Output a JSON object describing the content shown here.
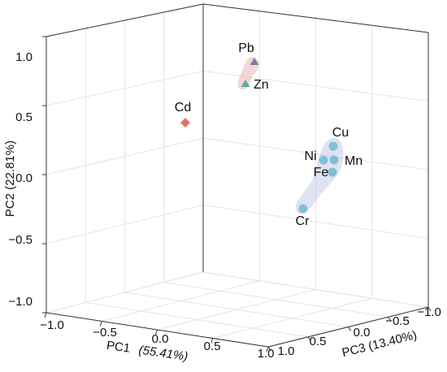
{
  "chart_data": {
    "type": "scatter",
    "title": "",
    "axes": {
      "x": {
        "label": "PC1",
        "pct": "(55.41%)",
        "ticks": [
          "−1.0",
          "−0.5",
          "0.0",
          "0.5",
          "1.0"
        ]
      },
      "y": {
        "label": "PC2 (22.81%)",
        "ticks": [
          "1.0",
          "0.5",
          "0.0",
          "−0.5",
          "−1.0"
        ]
      },
      "z": {
        "label": "PC3 (13.40%)",
        "ticks": [
          "1.0",
          "0.5",
          "0.0",
          "−0.5",
          "−1.0"
        ]
      }
    },
    "ranges": {
      "pc1": [
        -1.0,
        1.0
      ],
      "pc2": [
        -1.0,
        1.0
      ],
      "pc3": [
        -1.0,
        1.0
      ]
    },
    "grid": true,
    "groups": [
      {
        "color": "#e8a3a3",
        "members": [
          "Pb",
          "Zn"
        ]
      },
      {
        "color": "#b9bedd",
        "members": [
          "Cu",
          "Ni",
          "Mn",
          "Fe",
          "Cr"
        ]
      }
    ],
    "points": [
      {
        "label": "Cd",
        "shape": "diamond",
        "color": "#e0736b",
        "pc2": 0.47
      },
      {
        "label": "Pb",
        "shape": "triangle",
        "color": "#7e7ba8",
        "pc2": 0.96
      },
      {
        "label": "Zn",
        "shape": "triangle",
        "color": "#5fa9a9",
        "pc2": 0.78
      },
      {
        "label": "Cu",
        "shape": "circle",
        "color": "#7ec1d6",
        "pc2": 0.27
      },
      {
        "label": "Ni",
        "shape": "circle",
        "color": "#7ec1d6",
        "pc2": 0.15
      },
      {
        "label": "Mn",
        "shape": "circle",
        "color": "#7ec1d6",
        "pc2": 0.15
      },
      {
        "label": "Fe",
        "shape": "circle",
        "color": "#7ec1d6",
        "pc2": 0.05
      },
      {
        "label": "Cr",
        "shape": "circle",
        "color": "#7ec1d6",
        "pc2": -0.35
      }
    ]
  }
}
